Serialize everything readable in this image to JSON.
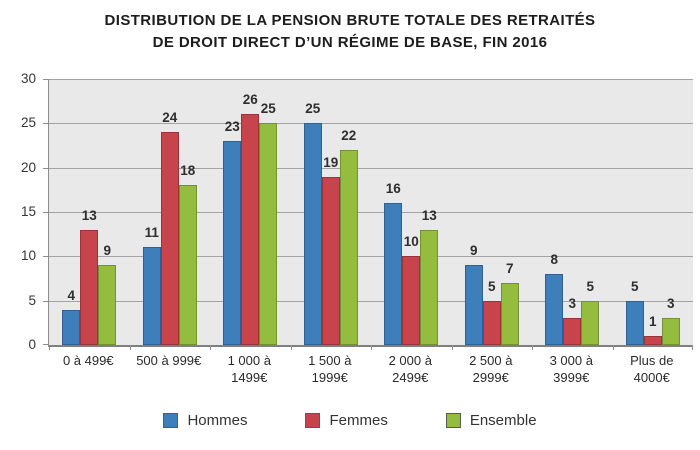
{
  "title": {
    "line1": "DISTRIBUTION DE LA PENSION BRUTE TOTALE DES RETRAITÉS",
    "line2": "DE DROIT DIRECT D’UN RÉGIME DE BASE, FIN 2016"
  },
  "chart_data": {
    "type": "bar",
    "title": "DISTRIBUTION DE LA PENSION BRUTE TOTALE DES RETRAITÉS DE DROIT DIRECT D’UN RÉGIME DE BASE, FIN 2016",
    "categories": [
      "0 à 499€",
      "500 à 999€",
      "1 000 à\n1499€",
      "1 500 à\n1999€",
      "2 000 à\n2499€",
      "2 500 à\n2999€",
      "3 000 à\n3999€",
      "Plus de\n4000€"
    ],
    "series": [
      {
        "name": "Hommes",
        "color": "#3D7EBB",
        "border_color": "#2E6191",
        "values": [
          4,
          11,
          23,
          25,
          16,
          9,
          8,
          5
        ]
      },
      {
        "name": "Femmes",
        "color": "#C8444C",
        "border_color": "#9A343B",
        "values": [
          13,
          24,
          26,
          19,
          10,
          5,
          3,
          1
        ]
      },
      {
        "name": "Ensemble",
        "color": "#94BC3F",
        "border_color": "#729231",
        "values": [
          9,
          18,
          25,
          22,
          13,
          7,
          5,
          3
        ]
      }
    ],
    "xlabel": "",
    "ylabel": "",
    "ylim": [
      0,
      30
    ],
    "ytick_step": 5,
    "ytick_labels": [
      "0",
      "5",
      "10",
      "15",
      "20",
      "25",
      "30"
    ],
    "grid": true,
    "data_labels": true,
    "legend_position": "bottom",
    "colors": {
      "plot_bg": "#E9E9E9",
      "grid": "#A3A3A3",
      "axis": "#8C8C8C",
      "value_label": "#2e2e2e",
      "tick_label": "#363636",
      "title": "#1d1d1d"
    }
  }
}
